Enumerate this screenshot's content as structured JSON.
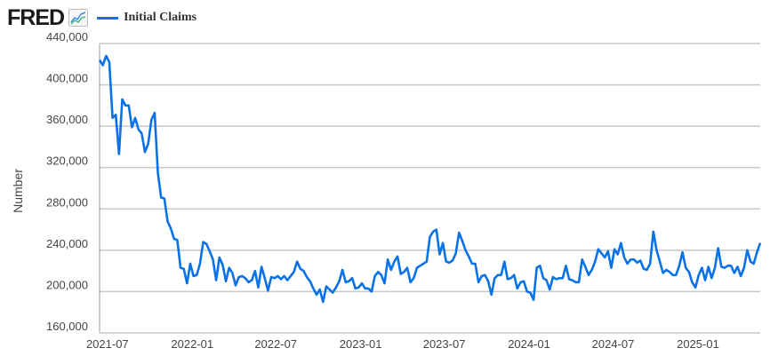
{
  "header": {
    "logo": "FRED",
    "logo_icon": "line-chart-icon"
  },
  "chart_data": {
    "type": "line",
    "title": "",
    "ylabel": "Number",
    "xlabel": "",
    "legend": {
      "placement": "top-left",
      "entries": [
        "Initial Claims"
      ]
    },
    "grid": "horizontal",
    "ylim": [
      160000,
      440000
    ],
    "yticks": [
      160000,
      200000,
      240000,
      280000,
      320000,
      360000,
      400000,
      440000
    ],
    "ytick_labels": [
      "160,000",
      "200,000",
      "240,000",
      "280,000",
      "320,000",
      "360,000",
      "400,000",
      "440,000"
    ],
    "xlim": [
      "2021-06-14",
      "2025-05-16"
    ],
    "xticks": [
      "2021-07-01",
      "2022-01-01",
      "2022-07-01",
      "2023-01-01",
      "2023-07-01",
      "2024-01-01",
      "2024-07-01",
      "2025-01-01"
    ],
    "xtick_labels": [
      "2021-07",
      "2022-01",
      "2022-07",
      "2023-01",
      "2023-07",
      "2024-01",
      "2024-07",
      "2025-01"
    ],
    "series": [
      {
        "name": "Initial Claims",
        "color": "#0b72e6",
        "frequency": "weekly",
        "values": [
          424000,
          419000,
          428000,
          422000,
          368000,
          371000,
          333000,
          386000,
          380000,
          380000,
          359000,
          368000,
          357000,
          353000,
          335000,
          343000,
          366000,
          373000,
          315000,
          291000,
          290000,
          268000,
          261000,
          251000,
          250000,
          223000,
          222000,
          208000,
          227000,
          215000,
          216000,
          227000,
          248000,
          246000,
          239000,
          231000,
          211000,
          233000,
          226000,
          210000,
          223000,
          218000,
          206000,
          214000,
          215000,
          213000,
          209000,
          211000,
          220000,
          204000,
          224000,
          213000,
          201000,
          214000,
          213000,
          215000,
          212000,
          215000,
          211000,
          215000,
          219000,
          229000,
          222000,
          220000,
          214000,
          210000,
          203000,
          197000,
          202000,
          190000,
          205000,
          202000,
          199000,
          204000,
          210000,
          221000,
          209000,
          210000,
          213000,
          203000,
          204000,
          208000,
          203000,
          203000,
          200000,
          215000,
          219000,
          216000,
          208000,
          231000,
          221000,
          229000,
          234000,
          217000,
          219000,
          223000,
          209000,
          213000,
          223000,
          225000,
          227000,
          229000,
          253000,
          258000,
          260000,
          236000,
          247000,
          229000,
          228000,
          230000,
          237000,
          257000,
          249000,
          240000,
          234000,
          227000,
          227000,
          209000,
          215000,
          216000,
          210000,
          197000,
          213000,
          216000,
          216000,
          229000,
          212000,
          213000,
          216000,
          203000,
          209000,
          210000,
          200000,
          199000,
          192000,
          223000,
          225000,
          213000,
          211000,
          202000,
          214000,
          212000,
          213000,
          213000,
          225000,
          212000,
          211000,
          209000,
          209000,
          231000,
          224000,
          216000,
          221000,
          229000,
          241000,
          237000,
          233000,
          239000,
          223000,
          241000,
          236000,
          247000,
          233000,
          227000,
          231000,
          231000,
          228000,
          230000,
          222000,
          221000,
          227000,
          258000,
          240000,
          229000,
          218000,
          221000,
          219000,
          216000,
          216000,
          225000,
          238000,
          223000,
          219000,
          209000,
          204000,
          216000,
          223000,
          211000,
          224000,
          213000,
          223000,
          242000,
          224000,
          223000,
          225000,
          225000,
          218000,
          224000,
          215000,
          223000,
          240000,
          229000,
          227000,
          238000,
          247000
        ]
      }
    ]
  }
}
